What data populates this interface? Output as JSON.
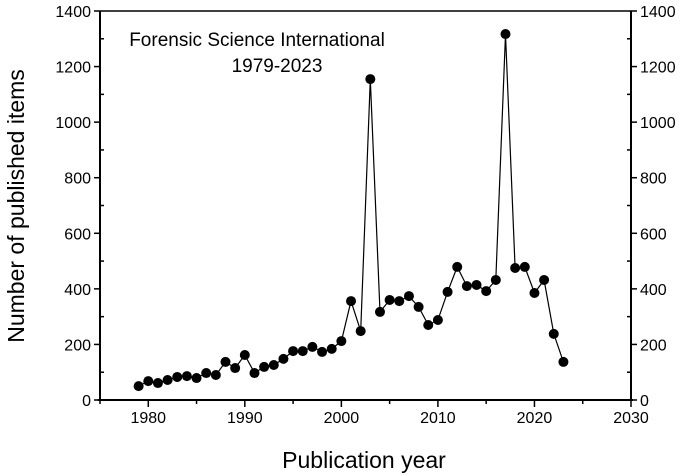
{
  "chart_data": {
    "type": "line",
    "title": "",
    "annotation": [
      "Forensic Science International",
      "1979-2023"
    ],
    "xlabel": "Publication year",
    "ylabel": "Number of published items",
    "xlim": [
      1975,
      2030
    ],
    "ylim": [
      0,
      1400
    ],
    "x_ticks": [
      1980,
      1990,
      2000,
      2010,
      2020,
      2030
    ],
    "y_ticks": [
      0,
      200,
      400,
      600,
      800,
      1000,
      1200,
      1400
    ],
    "right_axis_mirrored": true,
    "grid": false,
    "legend": null,
    "marker": "filled-circle",
    "color": "#000000",
    "x": [
      1979,
      1980,
      1981,
      1982,
      1983,
      1984,
      1985,
      1986,
      1987,
      1988,
      1989,
      1990,
      1991,
      1992,
      1993,
      1994,
      1995,
      1996,
      1997,
      1998,
      1999,
      2000,
      2001,
      2002,
      2003,
      2004,
      2005,
      2006,
      2007,
      2008,
      2009,
      2010,
      2011,
      2012,
      2013,
      2014,
      2015,
      2016,
      2017,
      2018,
      2019,
      2020,
      2021,
      2022,
      2023
    ],
    "values": [
      50,
      68,
      61,
      72,
      83,
      86,
      79,
      97,
      90,
      137,
      115,
      162,
      97,
      119,
      126,
      148,
      176,
      176,
      191,
      173,
      184,
      212,
      356,
      248,
      1155,
      317,
      360,
      356,
      374,
      335,
      270,
      288,
      389,
      479,
      410,
      414,
      392,
      432,
      1317,
      475,
      479,
      385,
      432,
      238,
      137
    ]
  }
}
